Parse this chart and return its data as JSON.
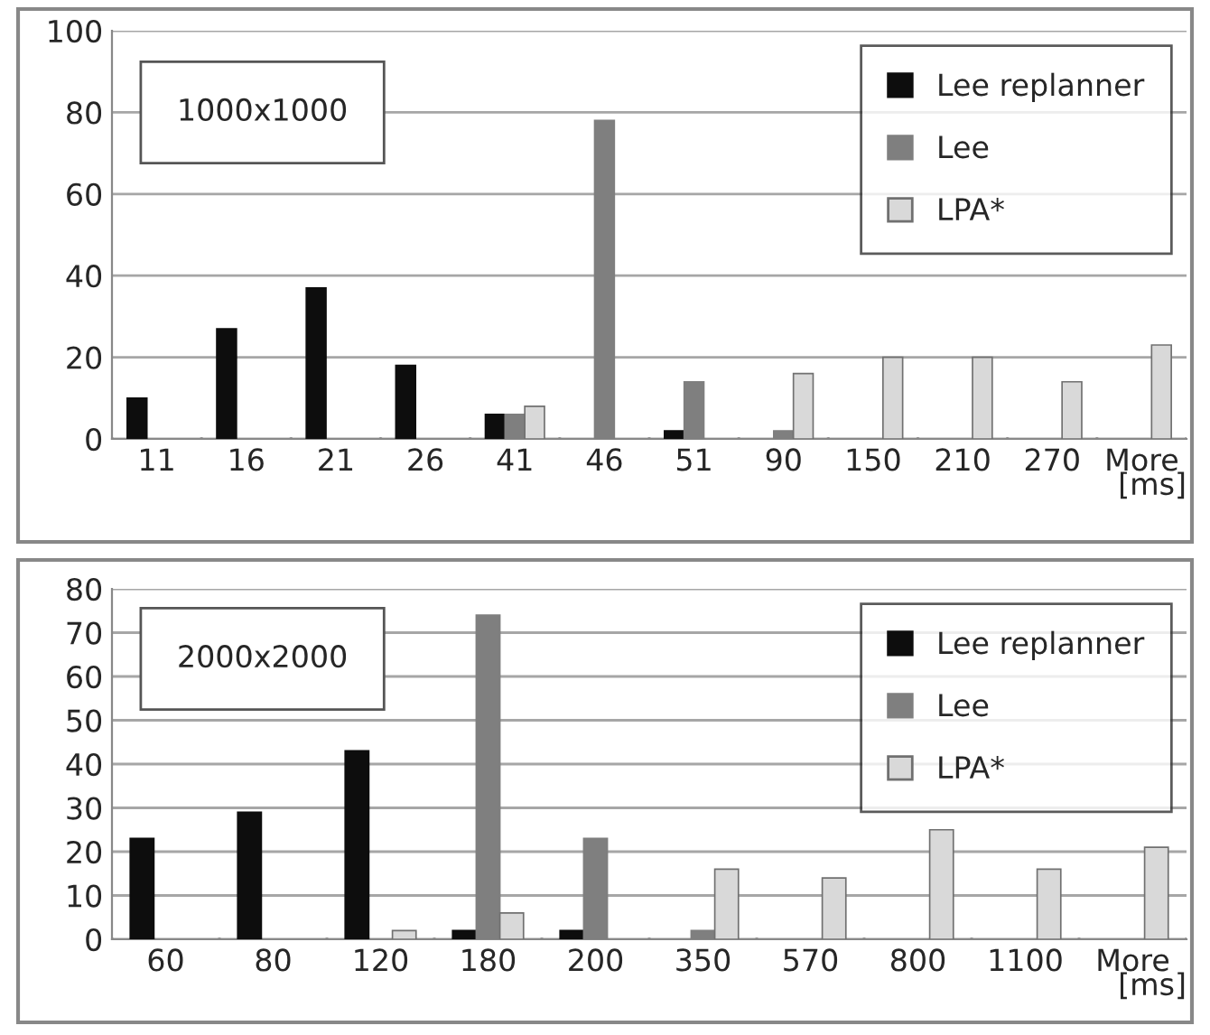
{
  "chart_data": [
    {
      "type": "bar",
      "xlabel": "[ms]",
      "annotations": [
        "1000x1000"
      ],
      "categories": [
        "11",
        "16",
        "21",
        "26",
        "41",
        "46",
        "51",
        "90",
        "150",
        "210",
        "270",
        "More"
      ],
      "series": [
        {
          "name": "Lee replanner",
          "color": "#0d0d0d",
          "values": [
            10,
            27,
            37,
            18,
            6,
            0,
            2,
            0,
            0,
            0,
            0,
            0
          ]
        },
        {
          "name": "Lee",
          "color": "#7f7f7f",
          "values": [
            0,
            0,
            0,
            0,
            6,
            78,
            14,
            2,
            0,
            0,
            0,
            0
          ]
        },
        {
          "name": "LPA*",
          "color": "#d9d9d9",
          "values": [
            0,
            0,
            0,
            0,
            8,
            0,
            0,
            16,
            20,
            20,
            14,
            23
          ]
        }
      ],
      "ylim": [
        0,
        100
      ],
      "yticks": [
        0,
        20,
        40,
        60,
        80,
        100
      ],
      "grid": "y",
      "legend": "top right"
    },
    {
      "type": "bar",
      "xlabel": "[ms]",
      "annotations": [
        "2000x2000"
      ],
      "categories": [
        "60",
        "80",
        "120",
        "180",
        "200",
        "350",
        "570",
        "800",
        "1100",
        "More"
      ],
      "series": [
        {
          "name": "Lee replanner",
          "color": "#0d0d0d",
          "values": [
            23,
            29,
            43,
            2,
            2,
            0,
            0,
            0,
            0,
            0
          ]
        },
        {
          "name": "Lee",
          "color": "#7f7f7f",
          "values": [
            0,
            0,
            0,
            74,
            23,
            2,
            0,
            0,
            0,
            0
          ]
        },
        {
          "name": "LPA*",
          "color": "#d9d9d9",
          "values": [
            0,
            0,
            2,
            6,
            0,
            16,
            14,
            25,
            16,
            21
          ]
        }
      ],
      "ylim": [
        0,
        80
      ],
      "yticks": [
        0,
        10,
        20,
        30,
        40,
        50,
        60,
        70,
        80
      ],
      "grid": "y",
      "legend": "top right"
    }
  ]
}
